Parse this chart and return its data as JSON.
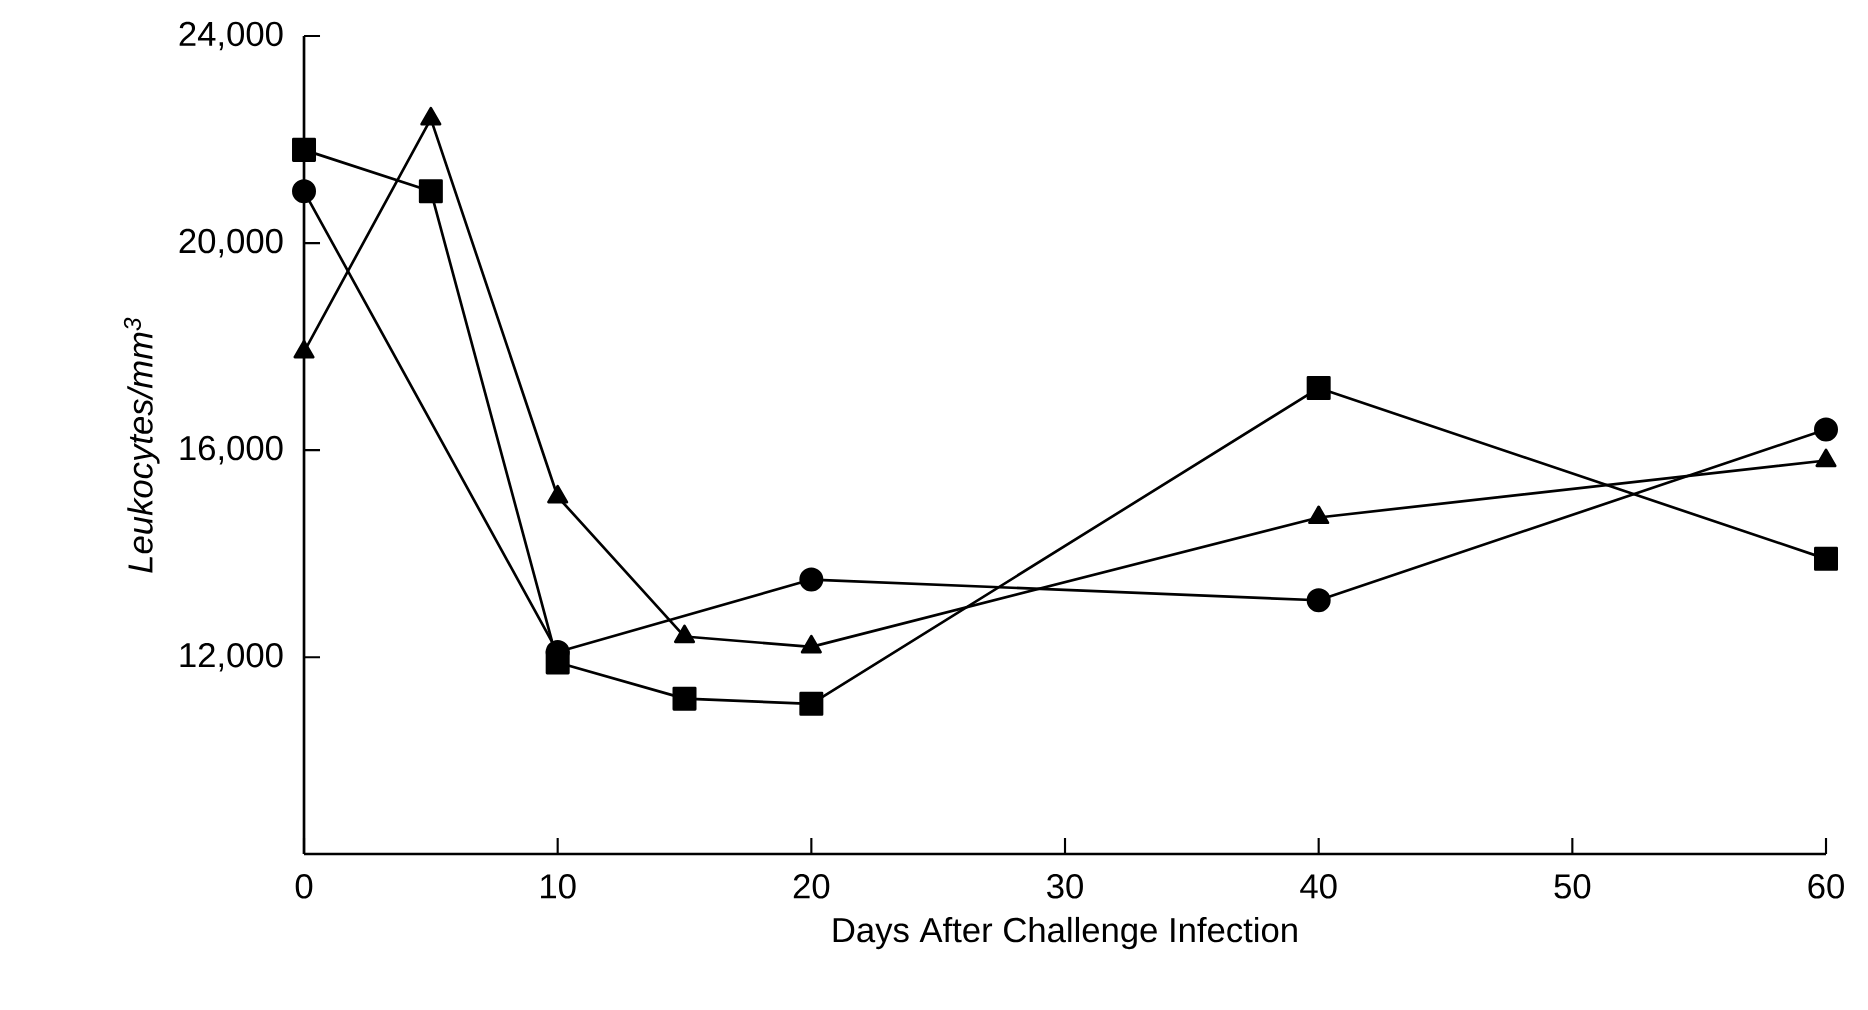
{
  "chart_data": {
    "type": "line",
    "xlabel": "Days After Challenge Infection",
    "ylabel": "*Leukocytes/mm$^{3}$*",
    "xlim": [
      0,
      60
    ],
    "ylim": [
      8200,
      24000
    ],
    "xticks": [
      0,
      10,
      20,
      30,
      40,
      50,
      60
    ],
    "yticks": [
      {
        "value": 12000,
        "label": "12,000"
      },
      {
        "value": 16000,
        "label": "16,000"
      },
      {
        "value": 20000,
        "label": "20,000"
      },
      {
        "value": 24000,
        "label": "24,000"
      }
    ],
    "series": [
      {
        "color": "#000000",
        "marker": "circle",
        "x": [
          0,
          10,
          20,
          40,
          60
        ],
        "values": [
          21000,
          12100,
          13500,
          13100,
          16400
        ]
      },
      {
        "color": "#000000",
        "marker": "square",
        "x": [
          0,
          5,
          10,
          15,
          20,
          40,
          60
        ],
        "values": [
          21800,
          21000,
          11900,
          11200,
          11100,
          17200,
          13900
        ]
      },
      {
        "color": "#000000",
        "marker": "triangle",
        "x": [
          0,
          5,
          10,
          15,
          20,
          40,
          60
        ],
        "values": [
          17900,
          22400,
          15100,
          12400,
          12200,
          14700,
          15800
        ]
      }
    ]
  }
}
